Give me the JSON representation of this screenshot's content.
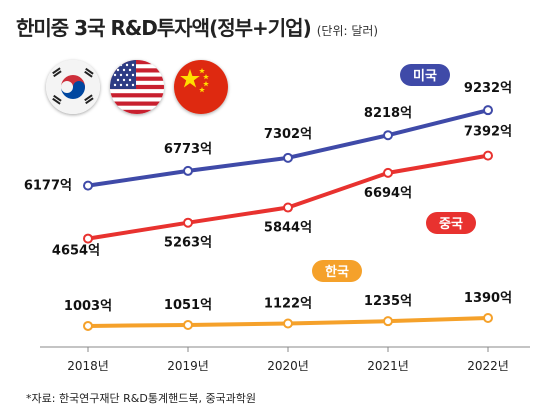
{
  "title": "한미중 3국 R&D투자액(정부+기업)",
  "unit": "(단위: 달러)",
  "source": "*자료: 한국연구재단 R&D통계핸드북, 중국과학원",
  "flags": [
    "south-korea-flag-icon",
    "usa-flag-icon",
    "china-flag-icon"
  ],
  "chart_data": {
    "type": "line",
    "categories": [
      "2018년",
      "2019년",
      "2020년",
      "2021년",
      "2022년"
    ],
    "series": [
      {
        "name": "미국",
        "color": "#3f4aa8",
        "values": [
          6177,
          6773,
          7302,
          8218,
          9232
        ],
        "labels": [
          "6177억",
          "6773억",
          "7302억",
          "8218억",
          "9232억"
        ]
      },
      {
        "name": "중국",
        "color": "#e8322f",
        "values": [
          4654,
          5263,
          5844,
          6694,
          7392
        ],
        "labels": [
          "4654억",
          "5263억",
          "5844억",
          "6694억",
          "7392억"
        ]
      },
      {
        "name": "한국",
        "color": "#f5a12a",
        "values": [
          1003,
          1051,
          1122,
          1235,
          1390
        ],
        "labels": [
          "1003억",
          "1051억",
          "1122억",
          "1235억",
          "1390억"
        ]
      }
    ]
  }
}
